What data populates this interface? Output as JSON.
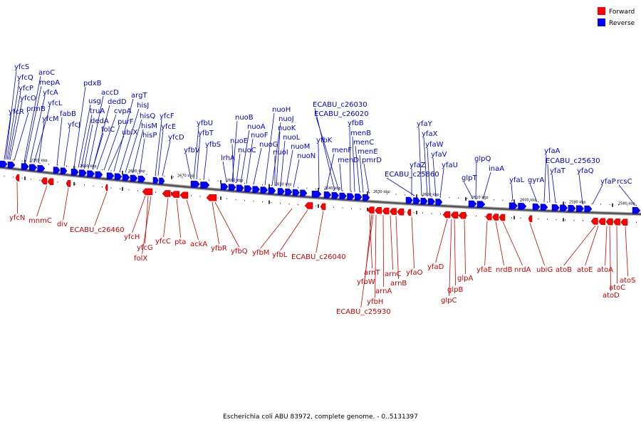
{
  "legend": {
    "items": [
      {
        "label": "Forward",
        "color": "#ff0000"
      },
      {
        "label": "Reverse",
        "color": "#0000ff"
      }
    ]
  },
  "caption": "Escherichia coli ABU 83972, complete genome. - 0..5131397",
  "colors": {
    "forward": "#ff0000",
    "reverse": "#0000ff",
    "forward_label": "#cc0000",
    "reverse_label": "#0000cc",
    "backbone": "#555555"
  },
  "scale_ticks": [
    "2700 kbp",
    "2690 kbp",
    "2680 kbp",
    "2670 kbp",
    "2660 kbp",
    "2650 kbp",
    "2640 kbp",
    "2630 kbp",
    "2620 kbp",
    "2610 kbp",
    "2600 kbp",
    "2590 kbp",
    "2580 kbp"
  ],
  "reverse_genes": [
    "yfcS",
    "yfcQ",
    "yfcP",
    "yfcO",
    "yfcR",
    "aroC",
    "mepA",
    "prmB",
    "yfcA",
    "yfcL",
    "yfcM",
    "fabB",
    "yfcJ",
    "pdxB",
    "usg",
    "truA",
    "dedA",
    "accD",
    "dedD",
    "cvpA",
    "folC",
    "purF",
    "ubiX",
    "argT",
    "hisJ",
    "hisQ",
    "hisM",
    "hisP",
    "yfcF",
    "yfcE",
    "yfcD",
    "yfbU",
    "yfbT",
    "yfbV",
    "yfbS",
    "lrhA",
    "nuoB",
    "nuoA",
    "nuoE",
    "nuoC",
    "nuoF",
    "nuoG",
    "nuoH",
    "nuoJ",
    "nuoK",
    "nuoL",
    "nuoI",
    "nuoM",
    "nuoN",
    "ECABU_c26030",
    "ECABU_c26020",
    "yfbK",
    "yfbB",
    "menB",
    "menF",
    "menC",
    "menD",
    "menE",
    "pmrD",
    "yfaY",
    "yfaX",
    "yfaW",
    "yfaZ",
    "yfaV",
    "ECABU_c25860",
    "yfaU",
    "glpQ",
    "glpT",
    "inaA",
    "yfaA",
    "ECABU_c25630",
    "yfaL",
    "gyrA",
    "yfaT",
    "yfaQ",
    "yfaP",
    "rcsC"
  ],
  "forward_genes": [
    "yfcN",
    "mnmC",
    "div",
    "ECABU_c26460",
    "yfcH",
    "yfcG",
    "folX",
    "yfcC",
    "pta",
    "ackA",
    "yfbR",
    "yfbQ",
    "yfbM",
    "yfbL",
    "ECABU_c26040",
    "arnT",
    "yfbW",
    "yfbH",
    "ECABU_c25930",
    "arnA",
    "arnC",
    "arnB",
    "yfaO",
    "yfaD",
    "glpB",
    "glpC",
    "glpA",
    "yfaE",
    "nrdB",
    "nrdA",
    "ubiG",
    "atoB",
    "atoE",
    "atoA",
    "atoC",
    "atoD",
    "atoS"
  ]
}
